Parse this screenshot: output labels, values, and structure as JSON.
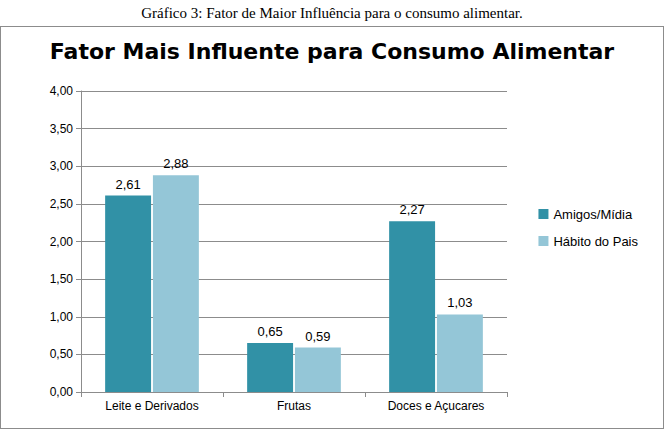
{
  "chart_data": {
    "type": "bar",
    "caption": "Gráfico 3: Fator de Maior Influência para o consumo alimentar.",
    "title": "Fator Mais Influente para Consumo Alimentar",
    "categories": [
      "Leite e Derivados",
      "Frutas",
      "Doces e Açucares"
    ],
    "series": [
      {
        "name": "Amigos/Mídia",
        "color": "#3191a6",
        "values": [
          2.61,
          0.65,
          2.27
        ],
        "value_labels": [
          "2,61",
          "0,65",
          "2,27"
        ]
      },
      {
        "name": "Hábito do Pais",
        "color": "#94c6d7",
        "values": [
          2.88,
          0.59,
          1.03
        ],
        "value_labels": [
          "2,88",
          "0,59",
          "1,03"
        ]
      }
    ],
    "ylim": [
      0,
      4
    ],
    "yticks": [
      {
        "value": 0,
        "label": "0,00"
      },
      {
        "value": 0.5,
        "label": "0,50"
      },
      {
        "value": 1,
        "label": "1,00"
      },
      {
        "value": 1.5,
        "label": "1,50"
      },
      {
        "value": 2,
        "label": "2,00"
      },
      {
        "value": 2.5,
        "label": "2,50"
      },
      {
        "value": 3,
        "label": "3,00"
      },
      {
        "value": 3.5,
        "label": "3,50"
      },
      {
        "value": 4,
        "label": "4,00"
      }
    ],
    "grid": true,
    "legend": "right",
    "data_labels": true
  }
}
